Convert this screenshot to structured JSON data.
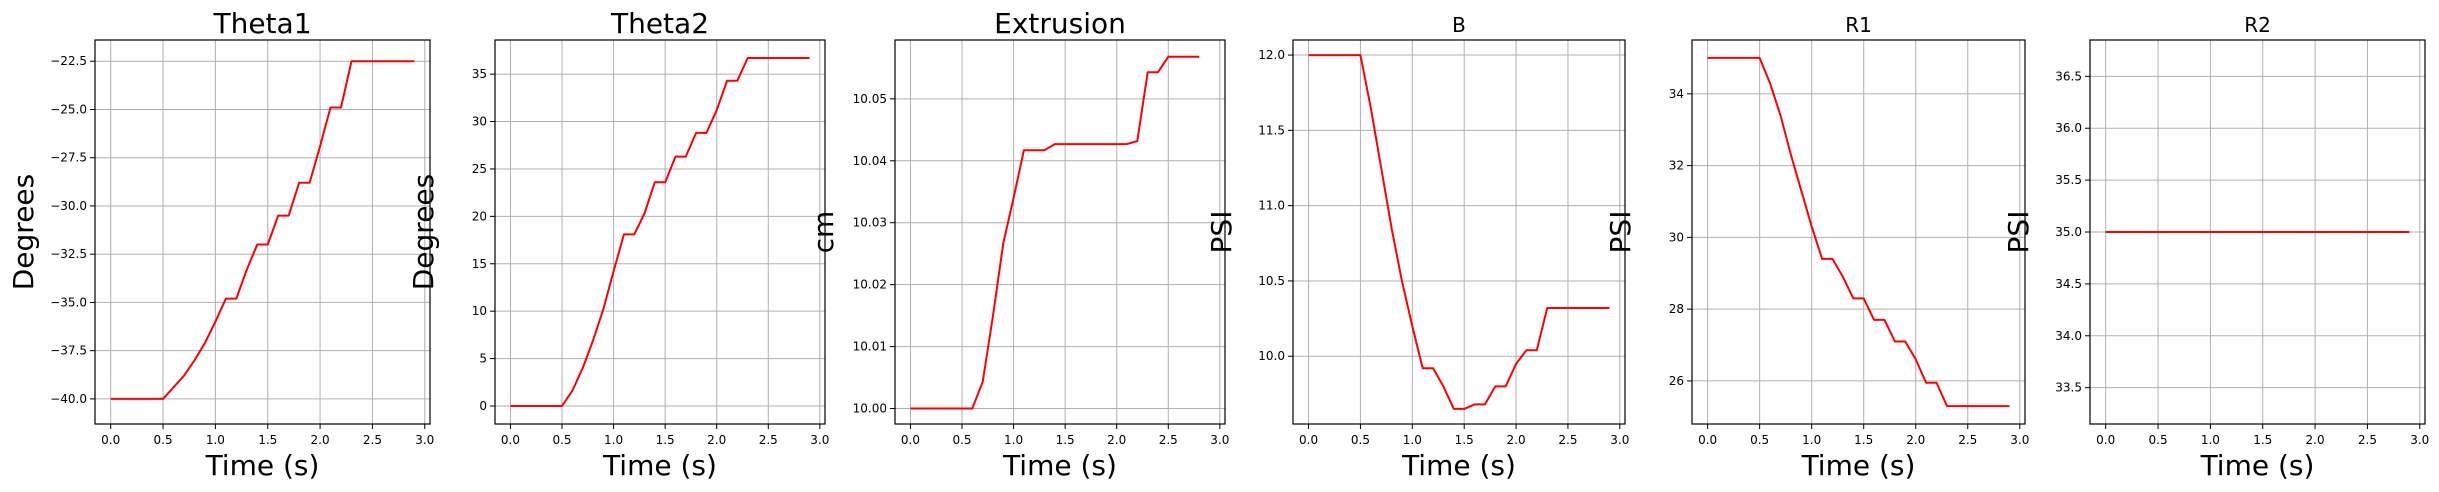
{
  "colors": {
    "line": "#ff0000",
    "grid": "#b0b0b0",
    "axes": "#000000"
  },
  "chart_data": [
    {
      "type": "line",
      "title": "Theta1",
      "xlabel": "Time (s)",
      "ylabel": "Degrees",
      "xlim": [
        -0.15,
        3.05
      ],
      "ylim": [
        -41.3,
        -21.4
      ],
      "grid": true,
      "xticks": [
        0.0,
        0.5,
        1.0,
        1.5,
        2.0,
        2.5,
        3.0
      ],
      "xtick_labels": [
        "0.0",
        "0.5",
        "1.0",
        "1.5",
        "2.0",
        "2.5",
        "3.0"
      ],
      "yticks": [
        -40.0,
        -37.5,
        -35.0,
        -32.5,
        -30.0,
        -27.5,
        -25.0,
        -22.5
      ],
      "ytick_labels": [
        "−40.0",
        "−37.5",
        "−35.0",
        "−32.5",
        "−30.0",
        "−27.5",
        "−25.0",
        "−22.5"
      ],
      "series": [
        {
          "x": [
            0.0,
            0.5,
            0.6,
            0.7,
            0.8,
            0.9,
            1.0,
            1.1,
            1.2,
            1.3,
            1.4,
            1.5,
            1.6,
            1.7,
            1.8,
            1.9,
            2.0,
            2.1,
            2.2,
            2.3,
            2.4,
            2.5,
            2.6,
            2.7,
            2.8,
            2.9
          ],
          "y": [
            -40.0,
            -40.0,
            -39.4,
            -38.8,
            -38.0,
            -37.1,
            -36.0,
            -34.8,
            -34.8,
            -33.3,
            -32.0,
            -32.0,
            -30.5,
            -30.5,
            -28.8,
            -28.8,
            -26.9,
            -24.9,
            -24.9,
            -22.5,
            -22.5,
            -22.5,
            -22.5,
            -22.5,
            -22.5,
            -22.5
          ]
        }
      ]
    },
    {
      "type": "line",
      "title": "Theta2",
      "xlabel": "Time (s)",
      "ylabel": "Degrees",
      "xlim": [
        -0.15,
        3.05
      ],
      "ylim": [
        -1.9,
        38.6
      ],
      "grid": true,
      "xticks": [
        0.0,
        0.5,
        1.0,
        1.5,
        2.0,
        2.5,
        3.0
      ],
      "xtick_labels": [
        "0.0",
        "0.5",
        "1.0",
        "1.5",
        "2.0",
        "2.5",
        "3.0"
      ],
      "yticks": [
        0,
        5,
        10,
        15,
        20,
        25,
        30,
        35
      ],
      "ytick_labels": [
        "0",
        "5",
        "10",
        "15",
        "20",
        "25",
        "30",
        "35"
      ],
      "series": [
        {
          "x": [
            0.0,
            0.5,
            0.6,
            0.7,
            0.8,
            0.9,
            1.0,
            1.1,
            1.2,
            1.3,
            1.4,
            1.5,
            1.6,
            1.7,
            1.8,
            1.9,
            2.0,
            2.1,
            2.2,
            2.3,
            2.4,
            2.5,
            2.6,
            2.7,
            2.8,
            2.9
          ],
          "y": [
            0.0,
            0.0,
            1.6,
            4.0,
            6.9,
            10.2,
            14.2,
            18.1,
            18.1,
            20.3,
            23.6,
            23.6,
            26.3,
            26.3,
            28.8,
            28.8,
            31.2,
            34.3,
            34.3,
            36.7,
            36.7,
            36.7,
            36.7,
            36.7,
            36.7,
            36.7
          ]
        }
      ]
    },
    {
      "type": "line",
      "title": "Extrusion",
      "xlabel": "Time (s)",
      "ylabel": "cm",
      "xlim": [
        -0.15,
        3.05
      ],
      "ylim": [
        9.9975,
        10.0595
      ],
      "grid": true,
      "xticks": [
        0.0,
        0.5,
        1.0,
        1.5,
        2.0,
        2.5,
        3.0
      ],
      "xtick_labels": [
        "0.0",
        "0.5",
        "1.0",
        "1.5",
        "2.0",
        "2.5",
        "3.0"
      ],
      "yticks": [
        10.0,
        10.01,
        10.02,
        10.03,
        10.04,
        10.05
      ],
      "ytick_labels": [
        "10.00",
        "10.01",
        "10.02",
        "10.03",
        "10.04",
        "10.05"
      ],
      "series": [
        {
          "x": [
            0.0,
            0.6,
            0.7,
            0.8,
            0.9,
            1.0,
            1.1,
            1.2,
            1.3,
            1.4,
            1.5,
            1.6,
            1.7,
            1.8,
            1.9,
            2.0,
            2.1,
            2.2,
            2.3,
            2.4,
            2.5,
            2.6,
            2.7,
            2.8
          ],
          "y": [
            10.0,
            10.0,
            10.0043,
            10.015,
            10.0267,
            10.034,
            10.0417,
            10.0417,
            10.0417,
            10.0427,
            10.0427,
            10.0427,
            10.0427,
            10.0427,
            10.0427,
            10.0427,
            10.0427,
            10.0432,
            10.0543,
            10.0543,
            10.0568,
            10.0568,
            10.0568,
            10.0568
          ]
        }
      ]
    },
    {
      "type": "line",
      "title": "B",
      "xlabel": "Time (s)",
      "ylabel": "PSI",
      "xlim": [
        -0.15,
        3.05
      ],
      "ylim": [
        9.55,
        12.1
      ],
      "grid": true,
      "xticks": [
        0.0,
        0.5,
        1.0,
        1.5,
        2.0,
        2.5,
        3.0
      ],
      "xtick_labels": [
        "0.0",
        "0.5",
        "1.0",
        "1.5",
        "2.0",
        "2.5",
        "3.0"
      ],
      "yticks": [
        10.0,
        10.5,
        11.0,
        11.5,
        12.0
      ],
      "ytick_labels": [
        "10.0",
        "10.5",
        "11.0",
        "11.5",
        "12.0"
      ],
      "series": [
        {
          "x": [
            0.0,
            0.5,
            0.6,
            0.7,
            0.8,
            0.9,
            1.0,
            1.1,
            1.2,
            1.3,
            1.4,
            1.5,
            1.6,
            1.7,
            1.8,
            1.9,
            2.0,
            2.1,
            2.2,
            2.3,
            2.4,
            2.5,
            2.6,
            2.7,
            2.8,
            2.9
          ],
          "y": [
            12.0,
            12.0,
            11.65,
            11.25,
            10.85,
            10.5,
            10.2,
            9.92,
            9.92,
            9.8,
            9.65,
            9.65,
            9.68,
            9.68,
            9.8,
            9.8,
            9.95,
            10.04,
            10.04,
            10.32,
            10.32,
            10.32,
            10.32,
            10.32,
            10.32,
            10.32
          ]
        }
      ]
    },
    {
      "type": "line",
      "title": "R1",
      "xlabel": "Time (s)",
      "ylabel": "PSI",
      "xlim": [
        -0.15,
        3.05
      ],
      "ylim": [
        24.8,
        35.5
      ],
      "grid": true,
      "xticks": [
        0.0,
        0.5,
        1.0,
        1.5,
        2.0,
        2.5,
        3.0
      ],
      "xtick_labels": [
        "0.0",
        "0.5",
        "1.0",
        "1.5",
        "2.0",
        "2.5",
        "3.0"
      ],
      "yticks": [
        26,
        28,
        30,
        32,
        34
      ],
      "ytick_labels": [
        "26",
        "28",
        "30",
        "32",
        "34"
      ],
      "series": [
        {
          "x": [
            0.0,
            0.5,
            0.6,
            0.7,
            0.8,
            0.9,
            1.0,
            1.1,
            1.2,
            1.3,
            1.4,
            1.5,
            1.6,
            1.7,
            1.8,
            1.9,
            2.0,
            2.1,
            2.2,
            2.3,
            2.4,
            2.5,
            2.6,
            2.7,
            2.8,
            2.9
          ],
          "y": [
            35.0,
            35.0,
            34.3,
            33.4,
            32.3,
            31.3,
            30.3,
            29.4,
            29.4,
            28.9,
            28.3,
            28.3,
            27.7,
            27.7,
            27.1,
            27.1,
            26.6,
            25.95,
            25.95,
            25.3,
            25.3,
            25.3,
            25.3,
            25.3,
            25.3,
            25.3
          ]
        }
      ]
    },
    {
      "type": "line",
      "title": "R2",
      "xlabel": "Time (s)",
      "ylabel": "PSI",
      "xlim": [
        -0.15,
        3.05
      ],
      "ylim": [
        33.15,
        36.85
      ],
      "grid": true,
      "xticks": [
        0.0,
        0.5,
        1.0,
        1.5,
        2.0,
        2.5,
        3.0
      ],
      "xtick_labels": [
        "0.0",
        "0.5",
        "1.0",
        "1.5",
        "2.0",
        "2.5",
        "3.0"
      ],
      "yticks": [
        33.5,
        34.0,
        34.5,
        35.0,
        35.5,
        36.0,
        36.5
      ],
      "ytick_labels": [
        "33.5",
        "34.0",
        "34.5",
        "35.0",
        "35.5",
        "36.0",
        "36.5"
      ],
      "series": [
        {
          "x": [
            0.0,
            2.9
          ],
          "y": [
            35.0,
            35.0
          ]
        }
      ]
    }
  ]
}
